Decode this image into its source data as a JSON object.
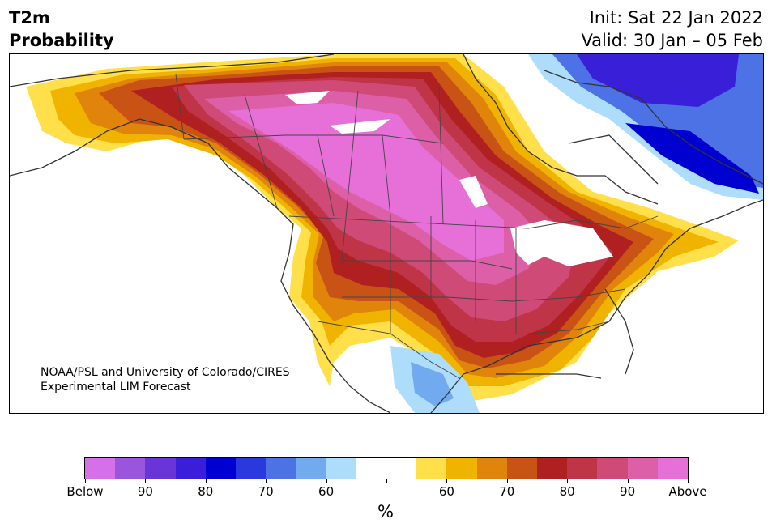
{
  "header": {
    "title_line1": "T2m",
    "title_line2": "Probability",
    "init_text": "Init: Sat 22 Jan 2022",
    "valid_text": "Valid: 30 Jan – 05 Feb"
  },
  "map": {
    "region": "North America",
    "credit_line1": "NOAA/PSL and University of Colorado/CIRES",
    "credit_line2": "Experimental LIM Forecast"
  },
  "colorbar": {
    "colors": [
      "#d670e8",
      "#9a55de",
      "#6a35d8",
      "#3a1fd8",
      "#0000d0",
      "#2a38dc",
      "#4c72e6",
      "#72aaf0",
      "#aedcfb",
      "#ffffff",
      "#ffffff",
      "#ffe04a",
      "#f0b400",
      "#e0840c",
      "#c85314",
      "#b02020",
      "#c03448",
      "#d04a78",
      "#dc5fa8",
      "#e670d8"
    ],
    "labels": [
      "Below",
      "90",
      "80",
      "70",
      "60",
      "",
      "60",
      "70",
      "80",
      "90",
      "Above"
    ],
    "unit": "%"
  }
}
